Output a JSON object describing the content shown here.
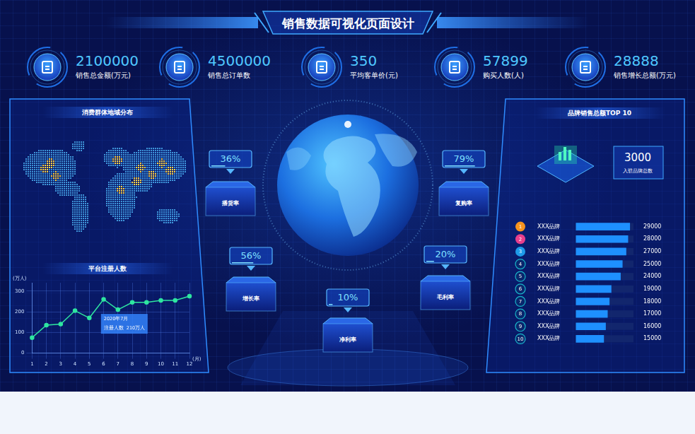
{
  "header": {
    "title": "销售数据可视化页面设计"
  },
  "kpis": [
    {
      "value": 2100000,
      "label": "销售总金额(万元)"
    },
    {
      "value": 4500000,
      "label": "销售总订单数"
    },
    {
      "value": 350,
      "label": "平均客单价(元)"
    },
    {
      "value": 57899,
      "label": "购买人数(人)"
    },
    {
      "value": 28888,
      "label": "销售增长总额(万元)"
    }
  ],
  "map": {
    "title": "消费群体地域分布"
  },
  "rates": [
    {
      "value": 36,
      "value_label": "36%",
      "label": "播货率"
    },
    {
      "value": 79,
      "value_label": "79%",
      "label": "复购率"
    },
    {
      "value": 56,
      "value_label": "56%",
      "label": "增长率"
    },
    {
      "value": 20,
      "value_label": "20%",
      "label": "毛利率"
    },
    {
      "value": 10,
      "value_label": "10%",
      "label": "净利率"
    }
  ],
  "brand_summary": {
    "value": 3000,
    "label": "入驻品牌总数"
  },
  "chart_data": [
    {
      "type": "line",
      "title": "平台注册人数",
      "categories": [
        "1",
        "2",
        "3",
        "4",
        "5",
        "6",
        "7",
        "8",
        "9",
        "10",
        "11",
        "12"
      ],
      "values": [
        75,
        135,
        140,
        205,
        170,
        260,
        210,
        245,
        245,
        255,
        255,
        275
      ],
      "color": "#2ee6a0",
      "marker": "circle",
      "ylabel": "(万人)",
      "xlabel": "(月)",
      "ylim": [
        0,
        340
      ],
      "yticks": [
        0,
        100,
        200,
        300
      ],
      "grid": true,
      "annotation": {
        "category": "7",
        "title": "2020年7月",
        "label": "注册人数",
        "value": 210,
        "value_label": "210万人"
      }
    },
    {
      "type": "bar",
      "orientation": "horizontal",
      "title": "品牌销售总额TOP 10",
      "ranks": [
        1,
        2,
        3,
        4,
        5,
        6,
        7,
        8,
        9,
        10
      ],
      "categories": [
        "XXX品牌",
        "XXX品牌",
        "XXX品牌",
        "XXX品牌",
        "XXX品牌",
        "XXX品牌",
        "XXX品牌",
        "XXX品牌",
        "XXX品牌",
        "XXX品牌"
      ],
      "values": [
        29000,
        28000,
        27000,
        25000,
        24000,
        19000,
        18000,
        17000,
        16000,
        15000
      ],
      "color": "#1e90ff",
      "xlim": [
        0,
        31000
      ],
      "data_labels": true,
      "tick_labels": "y"
    }
  ]
}
